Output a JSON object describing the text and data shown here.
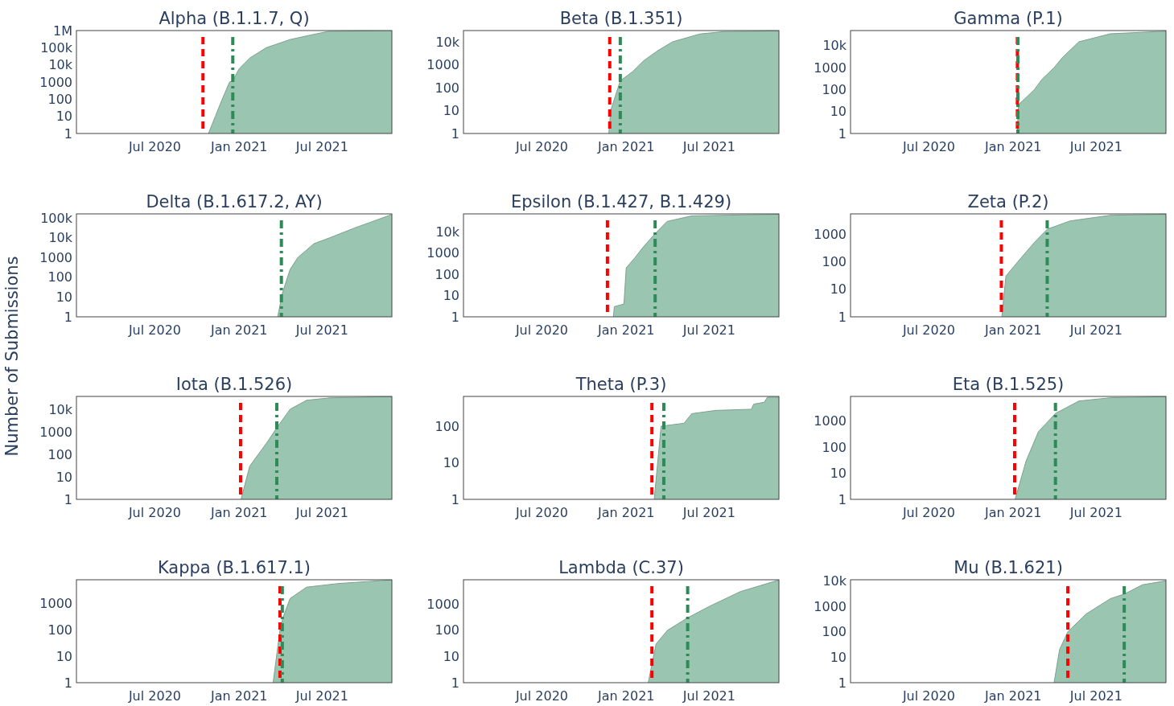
{
  "chart_data": [
    {
      "type": "area",
      "title": "Alpha (B.1.1.7, Q)",
      "log": true,
      "xlim": [
        "2020-01-12",
        "2021-11-30"
      ],
      "xticks": [
        {
          "value": "2020-07-01",
          "label": "Jul 2020"
        },
        {
          "value": "2021-01-01",
          "label": "Jan 2021"
        },
        {
          "value": "2021-07-01",
          "label": "Jul 2021"
        }
      ],
      "ylim": [
        1,
        1000000
      ],
      "yticks": [
        1,
        10,
        100,
        1000,
        {
          "value": 10000,
          "label": "10k"
        },
        {
          "value": 100000,
          "label": "100k"
        },
        {
          "value": 1000000,
          "label": "1M"
        }
      ],
      "ref_lines": [
        {
          "axis": "x",
          "value": "2020-10-14",
          "color": "#ff0000",
          "line_style": "dashed"
        },
        {
          "axis": "x",
          "value": "2020-12-18",
          "color": "#2e8b57",
          "line_style": "dashdot"
        }
      ],
      "series": [
        {
          "color": "#9ac6b1",
          "x": [
            "2020-10-26",
            "2020-11-10",
            "2020-11-25",
            "2020-12-11",
            "2020-12-18",
            "2021-01-01",
            "2021-01-24",
            "2021-03-01",
            "2021-04-22",
            "2021-06-13",
            "2021-07-15",
            "2021-11-30"
          ],
          "values": [
            1,
            10,
            100,
            1000,
            1200,
            6000,
            25000,
            100000,
            300000,
            600000,
            900000,
            980000
          ]
        }
      ]
    },
    {
      "type": "area",
      "title": "Beta (B.1.351)",
      "log": true,
      "xlim": [
        "2020-01-12",
        "2021-11-30"
      ],
      "xticks": [
        {
          "value": "2020-07-01",
          "label": "Jul 2020"
        },
        {
          "value": "2021-01-01",
          "label": "Jan 2021"
        },
        {
          "value": "2021-07-01",
          "label": "Jul 2021"
        }
      ],
      "ylim": [
        1,
        31000
      ],
      "yticks": [
        1,
        10,
        100,
        1000,
        {
          "value": 10000,
          "label": "10k"
        }
      ],
      "ref_lines": [
        {
          "axis": "x",
          "value": "2020-11-26",
          "color": "#ff0000",
          "line_style": "dashed"
        },
        {
          "axis": "x",
          "value": "2020-12-19",
          "color": "#2e8b57",
          "line_style": "dashdot"
        }
      ],
      "series": [
        {
          "color": "#9ac6b1",
          "x": [
            "2020-11-24",
            "2020-11-28",
            "2020-12-19",
            "2021-01-15",
            "2021-02-08",
            "2021-03-10",
            "2021-04-12",
            "2021-06-11",
            "2021-08-03",
            "2021-11-30"
          ],
          "values": [
            1,
            10,
            200,
            500,
            1500,
            4000,
            10000,
            22000,
            28000,
            30000
          ]
        }
      ]
    },
    {
      "type": "area",
      "title": "Gamma (P.1)",
      "log": true,
      "xlim": [
        "2020-01-12",
        "2021-11-30"
      ],
      "xticks": [
        {
          "value": "2020-07-01",
          "label": "Jul 2020"
        },
        {
          "value": "2021-01-01",
          "label": "Jan 2021"
        },
        {
          "value": "2021-07-01",
          "label": "Jul 2021"
        }
      ],
      "ylim": [
        1,
        49000
      ],
      "yticks": [
        1,
        10,
        100,
        1000,
        {
          "value": 10000,
          "label": "10k"
        }
      ],
      "ref_lines": [
        {
          "axis": "x",
          "value": "2021-01-10",
          "color": "#ff0000",
          "line_style": "dashed"
        },
        {
          "axis": "x",
          "value": "2021-01-11",
          "color": "#2e8b57",
          "line_style": "dashdot"
        }
      ],
      "series": [
        {
          "color": "#9ac6b1",
          "x": [
            "2021-01-10",
            "2021-01-12",
            "2021-02-16",
            "2021-03-05",
            "2021-03-31",
            "2021-04-19",
            "2021-05-24",
            "2021-08-01",
            "2021-11-30"
          ],
          "values": [
            1,
            20,
            100,
            300,
            1000,
            3000,
            15000,
            35000,
            46000
          ]
        }
      ]
    },
    {
      "type": "area",
      "title": "Delta (B.1.617.2, AY)",
      "ylabel": "Number of Submissions",
      "log": true,
      "xlim": [
        "2020-01-12",
        "2021-11-30"
      ],
      "xticks": [
        {
          "value": "2020-07-01",
          "label": "Jul 2020"
        },
        {
          "value": "2021-01-01",
          "label": "Jan 2021"
        },
        {
          "value": "2021-07-01",
          "label": "Jul 2021"
        }
      ],
      "ylim": [
        1,
        160000
      ],
      "yticks": [
        1,
        10,
        100,
        1000,
        {
          "value": 10000,
          "label": "10k"
        },
        {
          "value": 100000,
          "label": "100k"
        }
      ],
      "ref_lines": [
        {
          "axis": "x",
          "value": "2021-04-03",
          "color": "#2e8b57",
          "line_style": "dashdot"
        }
      ],
      "series": [
        {
          "color": "#9ac6b1",
          "x": [
            "2021-03-26",
            "2021-04-05",
            "2021-04-22",
            "2021-05-09",
            "2021-06-13",
            "2021-07-18",
            "2021-09-08",
            "2021-11-30"
          ],
          "values": [
            1,
            15,
            250,
            1000,
            5000,
            10000,
            30000,
            150000
          ]
        }
      ]
    },
    {
      "type": "area",
      "title": "Epsilon (B.1.427, B.1.429)",
      "log": true,
      "xlim": [
        "2020-01-12",
        "2021-11-30"
      ],
      "xticks": [
        {
          "value": "2020-07-01",
          "label": "Jul 2020"
        },
        {
          "value": "2021-01-01",
          "label": "Jan 2021"
        },
        {
          "value": "2021-07-01",
          "label": "Jul 2021"
        }
      ],
      "ylim": [
        1,
        68000
      ],
      "yticks": [
        1,
        10,
        100,
        1000,
        {
          "value": 10000,
          "label": "10k"
        }
      ],
      "ref_lines": [
        {
          "axis": "x",
          "value": "2020-11-21",
          "color": "#ff0000",
          "line_style": "dashed"
        },
        {
          "axis": "x",
          "value": "2021-03-05",
          "color": "#2e8b57",
          "line_style": "dashdot"
        }
      ],
      "series": [
        {
          "color": "#9ac6b1",
          "x": [
            "2020-12-04",
            "2020-12-06",
            "2020-12-27",
            "2021-01-01",
            "2021-01-20",
            "2021-02-08",
            "2021-03-05",
            "2021-03-31",
            "2021-05-24",
            "2021-11-30"
          ],
          "values": [
            1,
            3,
            4,
            200,
            600,
            2000,
            8000,
            30000,
            55000,
            65000
          ]
        }
      ]
    },
    {
      "type": "area",
      "title": "Zeta (P.2)",
      "log": true,
      "xlim": [
        "2020-01-12",
        "2021-11-30"
      ],
      "xticks": [
        {
          "value": "2020-07-01",
          "label": "Jul 2020"
        },
        {
          "value": "2021-01-01",
          "label": "Jan 2021"
        },
        {
          "value": "2021-07-01",
          "label": "Jul 2021"
        }
      ],
      "ylim": [
        1,
        5400
      ],
      "yticks": [
        1,
        10,
        100,
        1000
      ],
      "ref_lines": [
        {
          "axis": "x",
          "value": "2020-12-06",
          "color": "#ff0000",
          "line_style": "dashed"
        },
        {
          "axis": "x",
          "value": "2021-03-16",
          "color": "#2e8b57",
          "line_style": "dashdot"
        }
      ],
      "series": [
        {
          "color": "#9ac6b1",
          "x": [
            "2020-12-07",
            "2020-12-16",
            "2021-01-11",
            "2021-02-16",
            "2021-03-16",
            "2021-05-05",
            "2021-08-01",
            "2021-11-30"
          ],
          "values": [
            1,
            30,
            100,
            500,
            1500,
            3000,
            4800,
            5200
          ]
        }
      ]
    },
    {
      "type": "area",
      "title": "Iota (B.1.526)",
      "log": true,
      "xlim": [
        "2020-01-12",
        "2021-11-30"
      ],
      "xticks": [
        {
          "value": "2020-07-01",
          "label": "Jul 2020"
        },
        {
          "value": "2021-01-01",
          "label": "Jan 2021"
        },
        {
          "value": "2021-07-01",
          "label": "Jul 2021"
        }
      ],
      "ylim": [
        1,
        37000
      ],
      "yticks": [
        1,
        10,
        100,
        1000,
        {
          "value": 10000,
          "label": "10k"
        }
      ],
      "ref_lines": [
        {
          "axis": "x",
          "value": "2021-01-04",
          "color": "#ff0000",
          "line_style": "dashed"
        },
        {
          "axis": "x",
          "value": "2021-03-24",
          "color": "#2e8b57",
          "line_style": "dashdot"
        }
      ],
      "series": [
        {
          "color": "#9ac6b1",
          "x": [
            "2021-01-05",
            "2021-01-24",
            "2021-03-01",
            "2021-03-24",
            "2021-04-22",
            "2021-05-28",
            "2021-07-18",
            "2021-11-30"
          ],
          "values": [
            1,
            30,
            300,
            1500,
            10000,
            25000,
            32000,
            36000
          ]
        }
      ]
    },
    {
      "type": "area",
      "title": "Theta (P.3)",
      "log": true,
      "xlim": [
        "2020-01-12",
        "2021-11-30"
      ],
      "xticks": [
        {
          "value": "2020-07-01",
          "label": "Jul 2020"
        },
        {
          "value": "2021-01-01",
          "label": "Jan 2021"
        },
        {
          "value": "2021-07-01",
          "label": "Jul 2021"
        }
      ],
      "ylim": [
        1,
        650
      ],
      "yticks": [
        1,
        10,
        100
      ],
      "ref_lines": [
        {
          "axis": "x",
          "value": "2021-02-26",
          "color": "#ff0000",
          "line_style": "dashed"
        },
        {
          "axis": "x",
          "value": "2021-03-24",
          "color": "#2e8b57",
          "line_style": "dashdot"
        }
      ],
      "series": [
        {
          "color": "#9ac6b1",
          "x": [
            "2021-03-03",
            "2021-03-18",
            "2021-05-07",
            "2021-05-24",
            "2021-07-16",
            "2021-10-01",
            "2021-10-06",
            "2021-10-29",
            "2021-11-05",
            "2021-11-30"
          ],
          "values": [
            1,
            100,
            120,
            220,
            270,
            290,
            400,
            450,
            620,
            620
          ]
        }
      ]
    },
    {
      "type": "area",
      "title": "Eta (B.1.525)",
      "log": true,
      "xlim": [
        "2020-01-12",
        "2021-11-30"
      ],
      "xticks": [
        {
          "value": "2020-07-01",
          "label": "Jul 2020"
        },
        {
          "value": "2021-01-01",
          "label": "Jan 2021"
        },
        {
          "value": "2021-07-01",
          "label": "Jul 2021"
        }
      ],
      "ylim": [
        1,
        9000
      ],
      "yticks": [
        1,
        10,
        100,
        1000
      ],
      "ref_lines": [
        {
          "axis": "x",
          "value": "2021-01-04",
          "color": "#ff0000",
          "line_style": "dashed"
        },
        {
          "axis": "x",
          "value": "2021-04-03",
          "color": "#2e8b57",
          "line_style": "dashdot"
        }
      ],
      "series": [
        {
          "color": "#9ac6b1",
          "x": [
            "2021-01-05",
            "2021-01-29",
            "2021-02-25",
            "2021-04-03",
            "2021-05-24",
            "2021-08-01",
            "2021-11-30"
          ],
          "values": [
            1,
            30,
            400,
            2000,
            6000,
            8000,
            8800
          ]
        }
      ]
    },
    {
      "type": "area",
      "title": "Kappa (B.1.617.1)",
      "log": true,
      "xlim": [
        "2020-01-12",
        "2021-11-30"
      ],
      "xticks": [
        {
          "value": "2020-07-01",
          "label": "Jul 2020"
        },
        {
          "value": "2021-01-01",
          "label": "Jan 2021"
        },
        {
          "value": "2021-07-01",
          "label": "Jul 2021"
        }
      ],
      "ylim": [
        1,
        7600
      ],
      "yticks": [
        1,
        10,
        100,
        1000
      ],
      "ref_lines": [
        {
          "axis": "x",
          "value": "2021-03-31",
          "color": "#ff0000",
          "line_style": "dashed"
        },
        {
          "axis": "x",
          "value": "2021-04-05",
          "color": "#2e8b57",
          "line_style": "dashdot"
        }
      ],
      "series": [
        {
          "color": "#9ac6b1",
          "x": [
            "2021-03-16",
            "2021-03-31",
            "2021-04-07",
            "2021-04-22",
            "2021-05-28",
            "2021-08-06",
            "2021-11-30"
          ],
          "values": [
            1,
            100,
            300,
            1500,
            4000,
            5500,
            7500
          ]
        }
      ]
    },
    {
      "type": "area",
      "title": "Lambda (C.37)",
      "log": true,
      "xlim": [
        "2020-01-12",
        "2021-11-30"
      ],
      "xticks": [
        {
          "value": "2020-07-01",
          "label": "Jul 2020"
        },
        {
          "value": "2021-01-01",
          "label": "Jan 2021"
        },
        {
          "value": "2021-07-01",
          "label": "Jul 2021"
        }
      ],
      "ylim": [
        1,
        8500
      ],
      "yticks": [
        1,
        10,
        100,
        1000
      ],
      "ref_lines": [
        {
          "axis": "x",
          "value": "2021-02-26",
          "color": "#ff0000",
          "line_style": "dashed"
        },
        {
          "axis": "x",
          "value": "2021-05-15",
          "color": "#2e8b57",
          "line_style": "dashdot"
        }
      ],
      "series": [
        {
          "color": "#9ac6b1",
          "x": [
            "2021-02-18",
            "2021-03-07",
            "2021-04-01",
            "2021-05-15",
            "2021-06-30",
            "2021-09-07",
            "2021-11-30"
          ],
          "values": [
            1,
            30,
            100,
            300,
            800,
            3000,
            8300
          ]
        }
      ]
    },
    {
      "type": "area",
      "title": "Mu (B.1.621)",
      "log": true,
      "xlim": [
        "2020-01-12",
        "2021-11-30"
      ],
      "xticks": [
        {
          "value": "2020-07-01",
          "label": "Jul 2020"
        },
        {
          "value": "2021-01-01",
          "label": "Jan 2021"
        },
        {
          "value": "2021-07-01",
          "label": "Jul 2021"
        }
      ],
      "ylim": [
        1,
        11000
      ],
      "yticks": [
        1,
        10,
        100,
        1000,
        {
          "value": 10000,
          "label": "10k"
        }
      ],
      "ref_lines": [
        {
          "axis": "x",
          "value": "2021-04-30",
          "color": "#ff0000",
          "line_style": "dashed"
        },
        {
          "axis": "x",
          "value": "2021-08-31",
          "color": "#2e8b57",
          "line_style": "dashdot"
        }
      ],
      "series": [
        {
          "color": "#9ac6b1",
          "x": [
            "2021-03-31",
            "2021-04-12",
            "2021-04-30",
            "2021-06-09",
            "2021-08-01",
            "2021-08-31",
            "2021-10-10",
            "2021-11-30"
          ],
          "values": [
            1,
            20,
            100,
            500,
            2000,
            3000,
            7000,
            10000
          ]
        }
      ]
    }
  ]
}
